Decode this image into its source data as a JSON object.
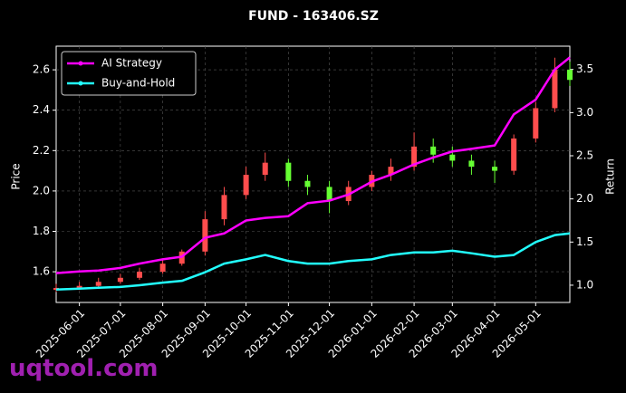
{
  "chart_data": {
    "type": "candlestick",
    "title": "FUND - 163406.SZ",
    "ylabel": "Price",
    "y2label": "Return",
    "watermark": "uqtool.com",
    "x": [
      "2025-05-15",
      "2025-06-01",
      "2025-06-15",
      "2025-07-01",
      "2025-07-15",
      "2025-08-01",
      "2025-08-15",
      "2025-09-01",
      "2025-09-15",
      "2025-10-01",
      "2025-10-15",
      "2025-11-01",
      "2025-11-15",
      "2025-12-01",
      "2025-12-15",
      "2026-01-01",
      "2026-01-15",
      "2026-02-01",
      "2026-02-15",
      "2026-03-01",
      "2026-03-15",
      "2026-04-01",
      "2026-04-15",
      "2026-05-01",
      "2026-05-15",
      "2026-05-26"
    ],
    "open": [
      1.51,
      1.52,
      1.53,
      1.55,
      1.57,
      1.6,
      1.64,
      1.7,
      1.86,
      1.98,
      2.08,
      2.14,
      2.05,
      2.02,
      1.95,
      2.02,
      2.08,
      2.12,
      2.22,
      2.18,
      2.15,
      2.12,
      2.1,
      2.26,
      2.41,
      2.6
    ],
    "high": [
      1.54,
      1.55,
      1.57,
      1.59,
      1.62,
      1.66,
      1.71,
      1.9,
      2.02,
      2.12,
      2.19,
      2.16,
      2.08,
      2.05,
      2.05,
      2.1,
      2.16,
      2.29,
      2.26,
      2.22,
      2.18,
      2.15,
      2.28,
      2.44,
      2.66,
      2.64
    ],
    "low": [
      1.5,
      1.51,
      1.52,
      1.54,
      1.56,
      1.59,
      1.63,
      1.68,
      1.83,
      1.96,
      2.05,
      2.02,
      1.98,
      1.89,
      1.93,
      2.0,
      2.05,
      2.1,
      2.14,
      2.12,
      2.08,
      2.04,
      2.08,
      2.24,
      2.39,
      2.52
    ],
    "close": [
      1.52,
      1.53,
      1.55,
      1.57,
      1.6,
      1.64,
      1.7,
      1.86,
      1.98,
      2.08,
      2.14,
      2.05,
      2.02,
      1.95,
      2.02,
      2.08,
      2.12,
      2.22,
      2.18,
      2.15,
      2.12,
      2.1,
      2.26,
      2.41,
      2.6,
      2.55
    ],
    "up_color": "#ff4d4d",
    "down_color": "#66ff33",
    "series": [
      {
        "name": "AI Strategy",
        "color": "#ff00ff",
        "axis": "y2",
        "values": [
          1.14,
          1.16,
          1.17,
          1.2,
          1.25,
          1.3,
          1.33,
          1.55,
          1.6,
          1.75,
          1.78,
          1.8,
          1.95,
          1.98,
          2.05,
          2.2,
          2.28,
          2.4,
          2.48,
          2.55,
          2.58,
          2.62,
          2.98,
          3.15,
          3.5,
          3.64
        ]
      },
      {
        "name": "Buy-and-Hold",
        "color": "#22ffff",
        "axis": "y2",
        "values": [
          0.95,
          0.96,
          0.97,
          0.98,
          1.0,
          1.03,
          1.05,
          1.15,
          1.25,
          1.3,
          1.35,
          1.28,
          1.25,
          1.25,
          1.28,
          1.3,
          1.35,
          1.38,
          1.38,
          1.4,
          1.37,
          1.33,
          1.35,
          1.5,
          1.58,
          1.6
        ]
      }
    ],
    "xlim": [
      "2025-05-15",
      "2026-05-26"
    ],
    "xticks": [
      "2025-06-01",
      "2025-07-01",
      "2025-08-01",
      "2025-09-01",
      "2025-10-01",
      "2025-11-01",
      "2025-12-01",
      "2026-01-01",
      "2026-02-01",
      "2026-03-01",
      "2026-04-01",
      "2026-05-01"
    ],
    "ylim": [
      1.448,
      2.717
    ],
    "yticks": [
      1.6,
      1.8,
      {
        "value": 2,
        "label": "2.0"
      },
      2.2,
      2.4,
      2.6
    ],
    "y2lim": [
      0.8,
      3.77
    ],
    "y2ticks": [
      {
        "value": 1,
        "label": "1.0"
      },
      1.5,
      {
        "value": 2,
        "label": "2.0"
      },
      2.5,
      {
        "value": 3,
        "label": "3.0"
      },
      3.5
    ],
    "grid": true,
    "legend": "upper left"
  }
}
